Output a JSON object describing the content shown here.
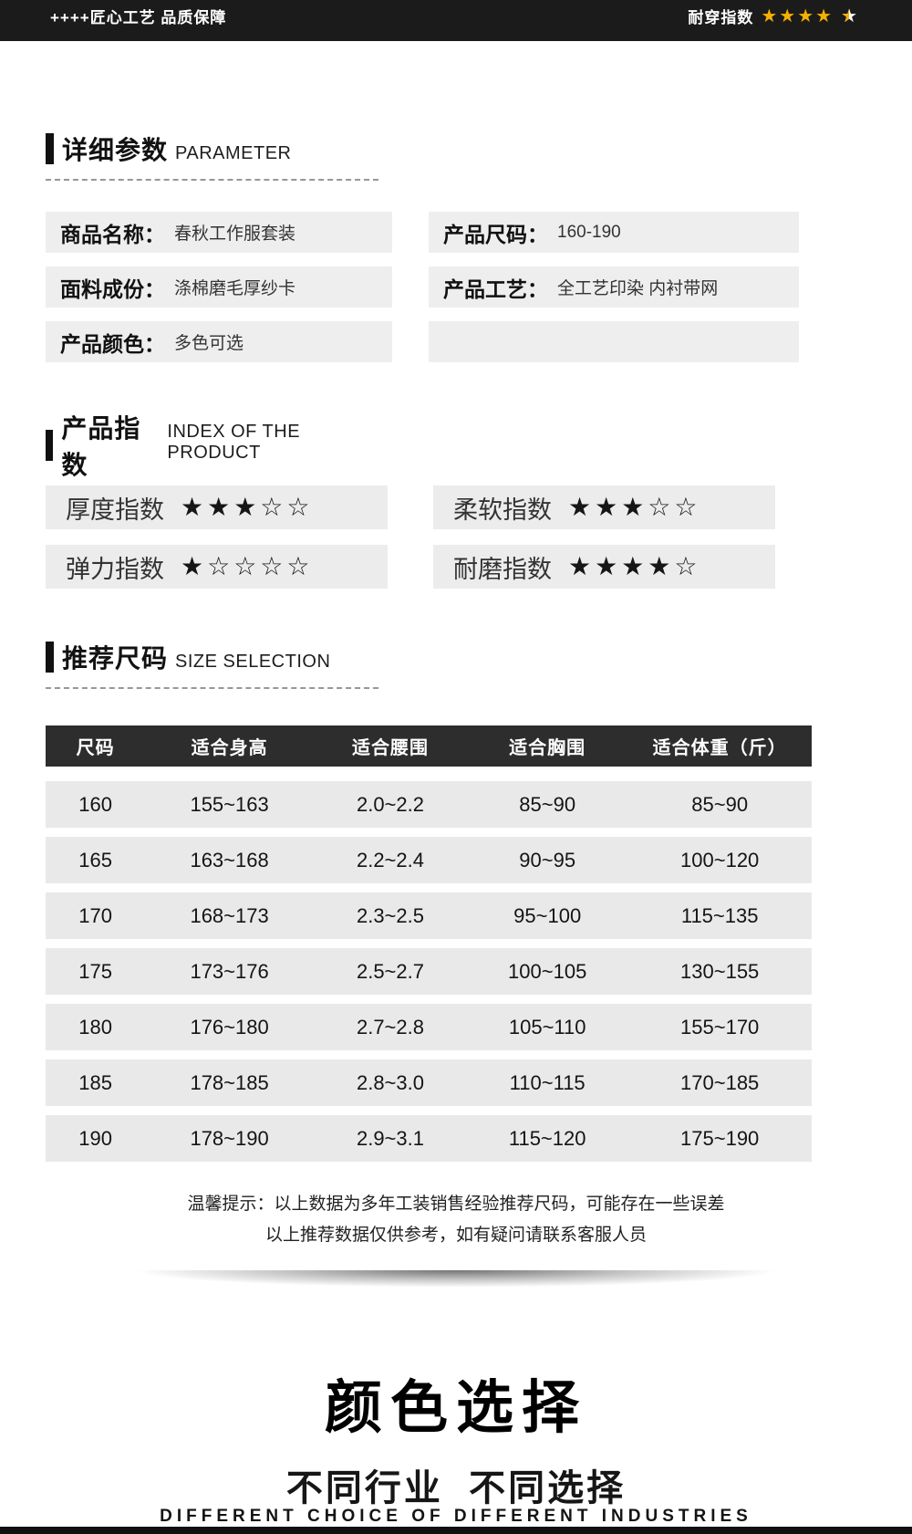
{
  "top_bar": {
    "left_text": "++++匠心工艺 品质保障",
    "rating_label": "耐穿指数",
    "rating": {
      "full": 4,
      "half": 1,
      "max": 5
    },
    "star_color": "#f3b101"
  },
  "sections": [
    {
      "title": "详细参数",
      "subtitle": "PARAMETER"
    },
    {
      "title": "产品指数",
      "subtitle": "INDEX OF THE PRODUCT"
    },
    {
      "title": "推荐尺码",
      "subtitle": "SIZE SELECTION"
    }
  ],
  "parameters": {
    "left": [
      {
        "label": "商品名称：",
        "value": "春秋工作服套装"
      },
      {
        "label": "面料成份：",
        "value": "涤棉磨毛厚纱卡"
      },
      {
        "label": "产品颜色：",
        "value": "多色可选"
      }
    ],
    "right": [
      {
        "label": "产品尺码：",
        "value": "160-190"
      },
      {
        "label": "产品工艺：",
        "value": "全工艺印染 内衬带网"
      }
    ],
    "right_has_empty_box": true
  },
  "indexes": {
    "left": [
      {
        "label": "厚度指数",
        "filled": 3,
        "max": 5
      },
      {
        "label": "弹力指数",
        "filled": 1,
        "max": 5
      }
    ],
    "right": [
      {
        "label": "柔软指数",
        "filled": 3,
        "max": 5
      },
      {
        "label": "耐磨指数",
        "filled": 4,
        "max": 5
      }
    ]
  },
  "size_table": {
    "headers": [
      "尺码",
      "适合身高",
      "适合腰围",
      "适合胸围",
      "适合体重（斤）"
    ],
    "rows": [
      [
        "160",
        "155~163",
        "2.0~2.2",
        "85~90",
        "85~90"
      ],
      [
        "165",
        "163~168",
        "2.2~2.4",
        "90~95",
        "100~120"
      ],
      [
        "170",
        "168~173",
        "2.3~2.5",
        "95~100",
        "115~135"
      ],
      [
        "175",
        "173~176",
        "2.5~2.7",
        "100~105",
        "130~155"
      ],
      [
        "180",
        "176~180",
        "2.7~2.8",
        "105~110",
        "155~170"
      ],
      [
        "185",
        "178~185",
        "2.8~3.0",
        "110~115",
        "170~185"
      ],
      [
        "190",
        "178~190",
        "2.9~3.1",
        "115~120",
        "175~190"
      ]
    ]
  },
  "note": {
    "line1": "温馨提示：以上数据为多年工装销售经验推荐尺码，可能存在一些误差",
    "line2": "以上推荐数据仅供参考，如有疑问请联系客服人员"
  },
  "color_section": {
    "title": "颜色选择",
    "subtitle": "不同行业  不同选择",
    "subtitle_en": "DIFFERENT CHOICE OF DIFFERENT INDUSTRIES"
  }
}
